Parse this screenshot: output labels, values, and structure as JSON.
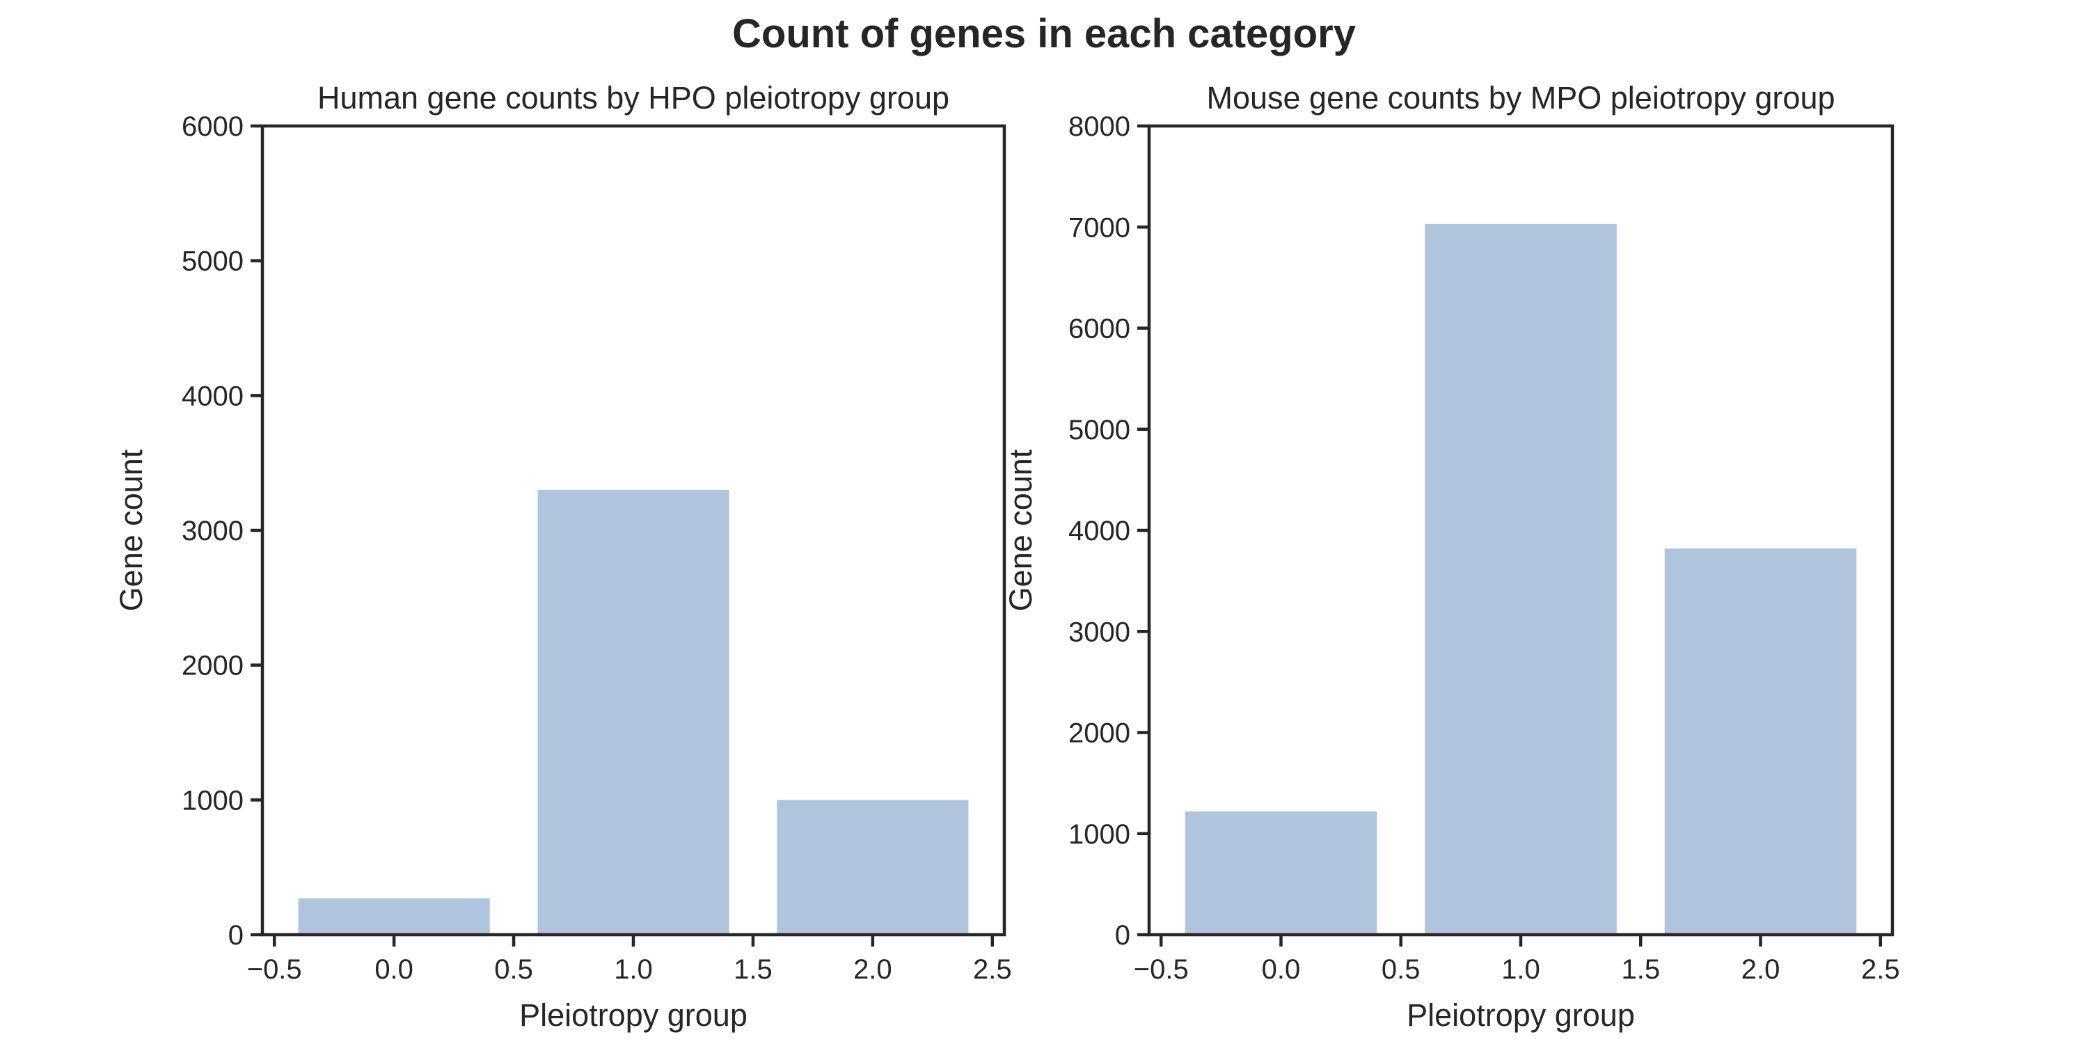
{
  "figure": {
    "title": "Count of genes in each category",
    "bar_color": "#b0c4de",
    "axis_color": "#262626"
  },
  "chart_data": [
    {
      "type": "bar",
      "title": "Human gene counts by HPO pleiotropy group",
      "xlabel": "Pleiotropy group",
      "ylabel": "Gene count",
      "x": [
        0.0,
        1.0,
        2.0
      ],
      "values": [
        270,
        3300,
        1000
      ],
      "xlim": [
        -0.55,
        2.55
      ],
      "ylim": [
        0,
        6000
      ],
      "xticks": [
        -0.5,
        0.0,
        0.5,
        1.0,
        1.5,
        2.0,
        2.5
      ],
      "xtick_labels": [
        "−0.5",
        "0.0",
        "0.5",
        "1.0",
        "1.5",
        "2.0",
        "2.5"
      ],
      "yticks": [
        0,
        1000,
        2000,
        3000,
        4000,
        5000,
        6000
      ],
      "ytick_labels": [
        "0",
        "1000",
        "2000",
        "3000",
        "4000",
        "5000",
        "6000"
      ],
      "grid": false
    },
    {
      "type": "bar",
      "title": "Mouse gene counts by MPO pleiotropy group",
      "xlabel": "Pleiotropy group",
      "ylabel": "Gene count",
      "x": [
        0.0,
        1.0,
        2.0
      ],
      "values": [
        1220,
        7030,
        3820
      ],
      "xlim": [
        -0.55,
        2.55
      ],
      "ylim": [
        0,
        8000
      ],
      "xticks": [
        -0.5,
        0.0,
        0.5,
        1.0,
        1.5,
        2.0,
        2.5
      ],
      "xtick_labels": [
        "−0.5",
        "0.0",
        "0.5",
        "1.0",
        "1.5",
        "2.0",
        "2.5"
      ],
      "yticks": [
        0,
        1000,
        2000,
        3000,
        4000,
        5000,
        6000,
        7000,
        8000
      ],
      "ytick_labels": [
        "0",
        "1000",
        "2000",
        "3000",
        "4000",
        "5000",
        "6000",
        "7000",
        "8000"
      ],
      "grid": false
    }
  ]
}
